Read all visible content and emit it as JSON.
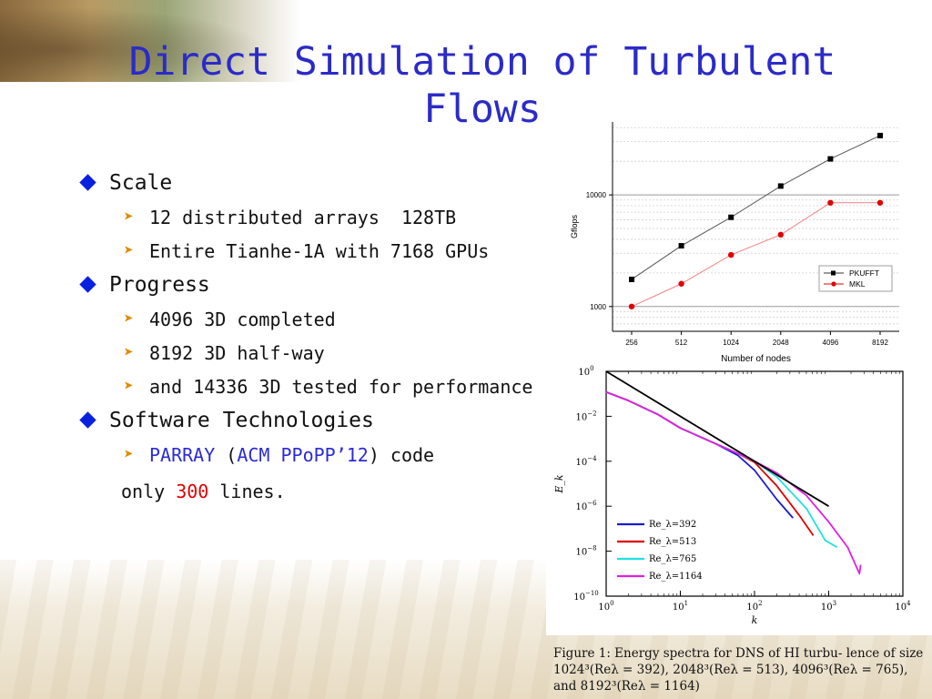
{
  "slide": {
    "title": "Direct Simulation of Turbulent Flows",
    "bullets": {
      "scale": {
        "label": "Scale",
        "items": [
          "12 distributed arrays  128TB",
          "Entire Tianhe-1A with 7168 GPUs"
        ]
      },
      "progress": {
        "label": "Progress",
        "items": [
          "4096 3D completed",
          "8192 3D half-way",
          "and 14336 3D tested for performance"
        ]
      },
      "software": {
        "label": "Software Technologies",
        "item_parts": {
          "parray": "PARRAY",
          "open": " (",
          "conf": "ACM PPoPP’12",
          "close": ")",
          "code": " code"
        },
        "cont_parts": {
          "pre": "only ",
          "num": "300",
          "post": " lines."
        }
      }
    }
  },
  "chart_data": [
    {
      "type": "line",
      "title": "",
      "xlabel": "Number of nodes",
      "ylabel": "Gflops",
      "x": [
        "256",
        "512",
        "1024",
        "2048",
        "4096",
        "8192"
      ],
      "yscale": "log",
      "ylim": [
        600,
        45000
      ],
      "yticks": [
        "1000",
        "10000"
      ],
      "legend_position": "bottom-right",
      "series": [
        {
          "name": "PKUFFT",
          "color": "#000000",
          "marker": "square",
          "values": [
            1750,
            3500,
            6300,
            12000,
            21000,
            34000
          ]
        },
        {
          "name": "MKL",
          "color": "#e00000",
          "marker": "circle",
          "values": [
            1000,
            1600,
            2900,
            4400,
            8500,
            8500
          ]
        }
      ]
    },
    {
      "type": "line",
      "title": "",
      "xlabel": "k",
      "ylabel": "E_k",
      "xscale": "log",
      "yscale": "log",
      "xlim": [
        1,
        10000
      ],
      "ylim": [
        1e-10,
        1
      ],
      "xticks": [
        "10^0",
        "10^1",
        "10^2",
        "10^3",
        "10^4"
      ],
      "yticks": [
        "10^0",
        "10^-2",
        "10^-4",
        "10^-6",
        "10^-8",
        "10^-10"
      ],
      "legend_position": "bottom-left",
      "series": [
        {
          "name": "Re_λ=392",
          "color": "#1a1ad0",
          "k": [
            1,
            2,
            5,
            10,
            30,
            60,
            100,
            200,
            330
          ],
          "E": [
            0.12,
            0.05,
            0.012,
            0.003,
            0.0006,
            0.00018,
            4e-05,
            2e-06,
            3e-07
          ]
        },
        {
          "name": "Re_λ=513",
          "color": "#e00000",
          "k": [
            1,
            2,
            5,
            10,
            30,
            60,
            100,
            200,
            400,
            620
          ],
          "E": [
            0.12,
            0.05,
            0.012,
            0.003,
            0.0006,
            0.00022,
            9e-05,
            8e-06,
            4e-07,
            5e-08
          ]
        },
        {
          "name": "Re_λ=765",
          "color": "#20e0e0",
          "k": [
            1,
            2,
            5,
            10,
            30,
            60,
            100,
            200,
            500,
            900,
            1300
          ],
          "E": [
            0.12,
            0.05,
            0.012,
            0.003,
            0.0006,
            0.00022,
            0.0001,
            2e-05,
            8e-07,
            3e-08,
            1.5e-08
          ]
        },
        {
          "name": "Re_λ=1164",
          "color": "#e020e0",
          "k": [
            1,
            2,
            5,
            10,
            30,
            60,
            100,
            200,
            500,
            1000,
            1800,
            2600,
            2700
          ],
          "E": [
            0.12,
            0.05,
            0.012,
            0.003,
            0.0006,
            0.00022,
            0.0001,
            3e-05,
            3e-06,
            2e-07,
            1.5e-08,
            1e-09,
            2.5e-09
          ]
        },
        {
          "name": "",
          "color": "#000000",
          "k": [
            1,
            1000
          ],
          "E": [
            1,
            1e-06
          ]
        }
      ]
    }
  ],
  "caption": {
    "label": "Figure 1:",
    "text_a": "Energy spectra for DNS of HI turbulence of size 1024",
    "line": "Figure 1:  Energy spectra for DNS of HI turbu- lence of size 1024³(Reλ = 392), 2048³(Reλ = 513), 4096³(Reλ = 765), and 8192³(Reλ = 1164)"
  }
}
